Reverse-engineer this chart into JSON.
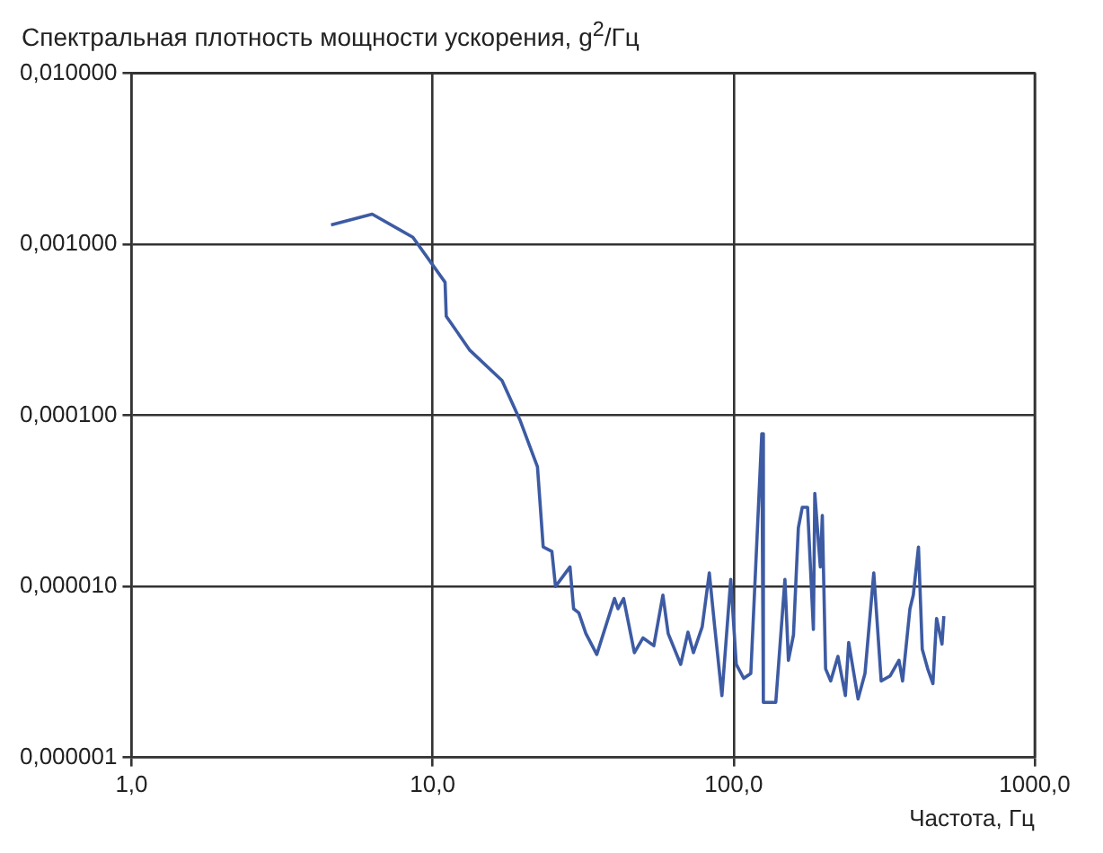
{
  "chart_data": {
    "type": "line",
    "ylabel": "Спектральная плотность мощности ускорения, g$^{2}$/Гц",
    "xlabel": "Частота, Гц",
    "log": "xy",
    "grid": true,
    "legend": false,
    "marker": "none",
    "line_style": "solid",
    "xlim": [
      1,
      1000
    ],
    "xticks": [
      {
        "value": 1,
        "label": "1,0"
      },
      {
        "value": 10,
        "label": "10,0"
      },
      {
        "value": 100,
        "label": "100,0"
      },
      {
        "value": 1000,
        "label": "1000,0"
      }
    ],
    "ylim": [
      1e-06,
      0.01
    ],
    "yticks": [
      {
        "value": 1e-06,
        "label": "0,000001"
      },
      {
        "value": 1e-05,
        "label": "0,000010"
      },
      {
        "value": 0.0001,
        "label": "0,000100"
      },
      {
        "value": 0.001,
        "label": "0,001000"
      },
      {
        "value": 0.01,
        "label": "0,010000"
      }
    ],
    "series": [
      {
        "color": "#3d5ba3",
        "x": [
          4.6,
          6.3,
          8.6,
          11,
          11.1,
          13.3,
          17,
          19.5,
          22.3,
          23.3,
          24.9,
          25.6,
          28.6,
          29.4,
          30.6,
          32.3,
          35.1,
          40.2,
          41.3,
          43.1,
          46.8,
          50,
          54.3,
          58.2,
          60.6,
          66.7,
          70.5,
          73.5,
          78.6,
          83,
          86.5,
          91.4,
          97.8,
          102,
          108,
          114,
          124,
          125.5,
          138,
          148,
          152,
          158,
          164,
          169,
          176,
          184,
          186,
          194,
          197,
          202,
          210,
          222,
          235,
          241,
          259,
          273,
          292,
          309,
          331,
          354,
          364,
          385,
          395,
          411,
          423,
          441,
          459,
          472,
          492,
          499
        ],
        "values": [
          0.0013,
          0.0015,
          0.0011,
          0.0006,
          0.00038,
          0.00024,
          0.00016,
          9.4e-05,
          5e-05,
          1.7e-05,
          1.6e-05,
          1e-05,
          1.3e-05,
          7.4e-06,
          7e-06,
          5.3e-06,
          4e-06,
          8.5e-06,
          7.4e-06,
          8.5e-06,
          4.1e-06,
          5e-06,
          4.5e-06,
          8.9e-06,
          5.3e-06,
          3.5e-06,
          5.4e-06,
          4.1e-06,
          5.8e-06,
          1.2e-05,
          5.8e-06,
          2.3e-06,
          1.1e-05,
          3.5e-06,
          2.9e-06,
          3.1e-06,
          7.8e-05,
          2.1e-06,
          2.1e-06,
          1.1e-05,
          3.7e-06,
          5.2e-06,
          2.2e-05,
          2.9e-05,
          2.9e-05,
          5.6e-06,
          3.5e-05,
          1.3e-05,
          2.6e-05,
          3.3e-06,
          2.8e-06,
          3.9e-06,
          2.3e-06,
          4.7e-06,
          2.2e-06,
          3.1e-06,
          1.2e-05,
          2.8e-06,
          3e-06,
          3.7e-06,
          2.8e-06,
          7.4e-06,
          8.9e-06,
          1.7e-05,
          4.3e-06,
          3.3e-06,
          2.7e-06,
          6.5e-06,
          4.6e-06,
          6.7e-06
        ]
      }
    ]
  }
}
